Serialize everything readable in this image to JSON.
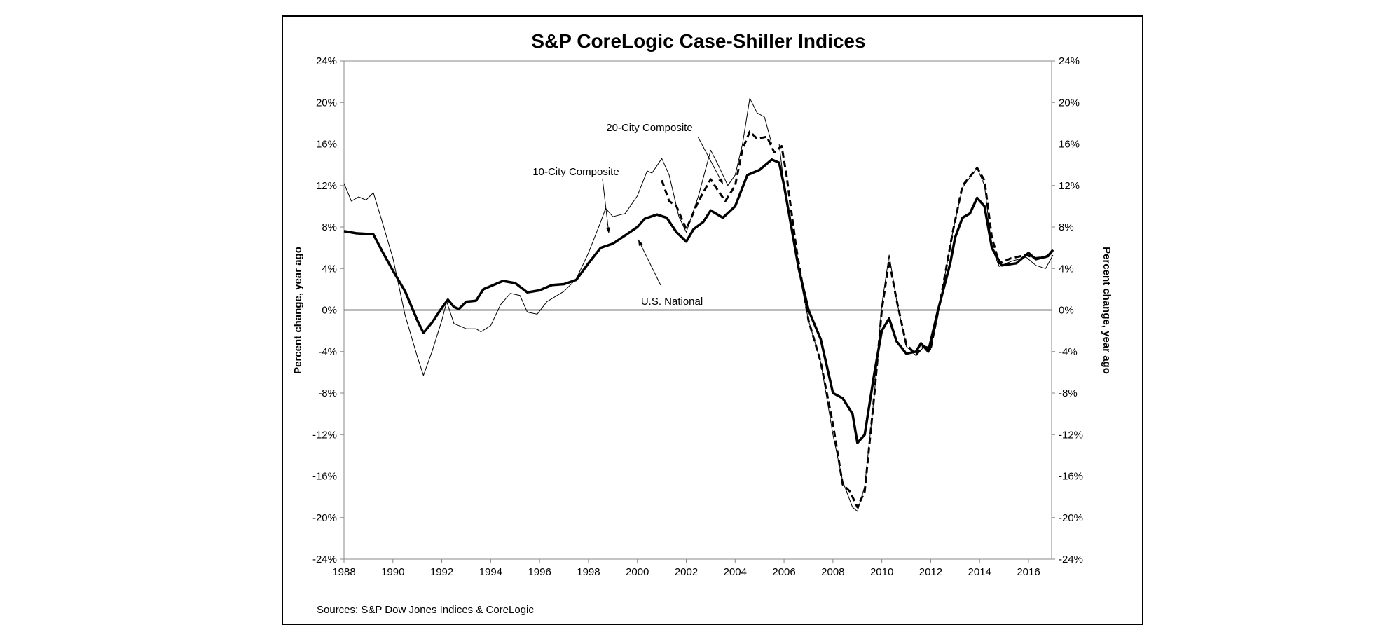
{
  "chart_data": {
    "type": "line",
    "title": "S&P CoreLogic Case-Shiller Indices",
    "ylabel": "Percent change, year ago",
    "ylabel_right": "Percent change, year ago",
    "xlabel": "",
    "source": "Sources: S&P Dow Jones Indices & CoreLogic",
    "xlim": [
      1988,
      2017
    ],
    "ylim": [
      -24,
      24
    ],
    "x_ticks": [
      "1988",
      "1990",
      "1992",
      "1994",
      "1996",
      "1998",
      "2000",
      "2002",
      "2004",
      "2006",
      "2008",
      "2010",
      "2012",
      "2014",
      "2016"
    ],
    "y_ticks": [
      "24%",
      "20%",
      "16%",
      "12%",
      "8%",
      "4%",
      "0%",
      "-4%",
      "-8%",
      "-12%",
      "-16%",
      "-20%",
      "-24%"
    ],
    "grid": false,
    "legend": "none (inline annotations)",
    "annotations": [
      "20-City Composite",
      "10-City Composite",
      "U.S. National"
    ],
    "series": [
      {
        "name": "U.S. National",
        "style": "thick solid",
        "color": "#000000",
        "points": [
          [
            1988,
            7.6
          ],
          [
            1988.5,
            7.4
          ],
          [
            1989.2,
            7.3
          ],
          [
            1989.6,
            5.5
          ],
          [
            1990,
            3.8
          ],
          [
            1990.5,
            1.8
          ],
          [
            1991,
            -1.0
          ],
          [
            1991.25,
            -2.2
          ],
          [
            1991.6,
            -1.2
          ],
          [
            1992,
            0.2
          ],
          [
            1992.25,
            1.0
          ],
          [
            1992.5,
            0.3
          ],
          [
            1992.7,
            0.1
          ],
          [
            1993,
            0.8
          ],
          [
            1993.4,
            0.9
          ],
          [
            1993.7,
            2.0
          ],
          [
            1994,
            2.3
          ],
          [
            1994.5,
            2.8
          ],
          [
            1995,
            2.6
          ],
          [
            1995.5,
            1.7
          ],
          [
            1996,
            1.9
          ],
          [
            1996.5,
            2.4
          ],
          [
            1997,
            2.5
          ],
          [
            1997.5,
            2.9
          ],
          [
            1998,
            4.5
          ],
          [
            1998.5,
            6.0
          ],
          [
            1999,
            6.4
          ],
          [
            1999.5,
            7.2
          ],
          [
            2000,
            8.0
          ],
          [
            2000.3,
            8.8
          ],
          [
            2000.8,
            9.2
          ],
          [
            2001.2,
            8.9
          ],
          [
            2001.6,
            7.5
          ],
          [
            2002,
            6.6
          ],
          [
            2002.3,
            7.8
          ],
          [
            2002.7,
            8.5
          ],
          [
            2003,
            9.6
          ],
          [
            2003.5,
            8.9
          ],
          [
            2004,
            10.0
          ],
          [
            2004.5,
            13.0
          ],
          [
            2005,
            13.5
          ],
          [
            2005.5,
            14.5
          ],
          [
            2005.8,
            14.2
          ],
          [
            2006,
            12.0
          ],
          [
            2006.3,
            8
          ],
          [
            2006.6,
            4
          ],
          [
            2007,
            0
          ],
          [
            2007.5,
            -2.8
          ],
          [
            2008,
            -8.0
          ],
          [
            2008.4,
            -8.5
          ],
          [
            2008.8,
            -10
          ],
          [
            2009,
            -12.8
          ],
          [
            2009.3,
            -12
          ],
          [
            2009.7,
            -6
          ],
          [
            2010,
            -2
          ],
          [
            2010.3,
            -0.8
          ],
          [
            2010.6,
            -3
          ],
          [
            2011,
            -4.2
          ],
          [
            2011.4,
            -4
          ],
          [
            2011.6,
            -3.2
          ],
          [
            2011.9,
            -4
          ],
          [
            2012.3,
            0
          ],
          [
            2012.8,
            4.5
          ],
          [
            2013,
            7
          ],
          [
            2013.3,
            8.9
          ],
          [
            2013.6,
            9.3
          ],
          [
            2013.9,
            10.8
          ],
          [
            2014.2,
            10
          ],
          [
            2014.5,
            6
          ],
          [
            2014.9,
            4.3
          ],
          [
            2015.5,
            4.5
          ],
          [
            2016,
            5.5
          ],
          [
            2016.3,
            4.9
          ],
          [
            2016.8,
            5.2
          ],
          [
            2017,
            5.8
          ]
        ]
      },
      {
        "name": "10-City Composite",
        "style": "thin solid",
        "color": "#000000",
        "points": [
          [
            1988,
            12.2
          ],
          [
            1988.3,
            10.5
          ],
          [
            1988.6,
            10.9
          ],
          [
            1988.9,
            10.6
          ],
          [
            1989.2,
            11.3
          ],
          [
            1989.5,
            9
          ],
          [
            1990,
            5
          ],
          [
            1990.5,
            -0.5
          ],
          [
            1991,
            -4.5
          ],
          [
            1991.25,
            -6.3
          ],
          [
            1991.6,
            -4
          ],
          [
            1992,
            -1
          ],
          [
            1992.2,
            0.8
          ],
          [
            1992.5,
            -1.3
          ],
          [
            1993,
            -1.8
          ],
          [
            1993.4,
            -1.8
          ],
          [
            1993.6,
            -2.1
          ],
          [
            1994,
            -1.5
          ],
          [
            1994.4,
            0.5
          ],
          [
            1994.8,
            1.6
          ],
          [
            1995.2,
            1.4
          ],
          [
            1995.5,
            -0.2
          ],
          [
            1995.9,
            -0.4
          ],
          [
            1996.3,
            0.8
          ],
          [
            1997,
            1.8
          ],
          [
            1997.5,
            3.0
          ],
          [
            1998,
            5.5
          ],
          [
            1998.5,
            8.5
          ],
          [
            1998.7,
            9.8
          ],
          [
            1999,
            9.0
          ],
          [
            1999.5,
            9.3
          ],
          [
            2000,
            11
          ],
          [
            2000.4,
            13.4
          ],
          [
            2000.6,
            13.2
          ],
          [
            2001,
            14.6
          ],
          [
            2001.3,
            13
          ],
          [
            2001.7,
            9
          ],
          [
            2002,
            7.5
          ],
          [
            2002.5,
            11
          ],
          [
            2003,
            15.4
          ],
          [
            2003.3,
            14
          ],
          [
            2003.7,
            12
          ],
          [
            2004,
            13
          ],
          [
            2004.3,
            16
          ],
          [
            2004.6,
            20.4
          ],
          [
            2004.9,
            19
          ],
          [
            2005.2,
            18.6
          ],
          [
            2005.5,
            16
          ],
          [
            2005.8,
            16
          ],
          [
            2006,
            12
          ],
          [
            2006.5,
            5
          ],
          [
            2007,
            -1
          ],
          [
            2007.5,
            -5
          ],
          [
            2008,
            -12
          ],
          [
            2008.4,
            -16.5
          ],
          [
            2008.8,
            -19
          ],
          [
            2009,
            -19.4
          ],
          [
            2009.3,
            -17
          ],
          [
            2009.7,
            -8
          ],
          [
            2010,
            0.5
          ],
          [
            2010.3,
            5.3
          ],
          [
            2010.6,
            1
          ],
          [
            2011,
            -3.5
          ],
          [
            2011.4,
            -4.4
          ],
          [
            2011.7,
            -3.6
          ],
          [
            2012,
            -3.8
          ],
          [
            2012.4,
            1
          ],
          [
            2012.9,
            7.5
          ],
          [
            2013.3,
            11.8
          ],
          [
            2013.9,
            13.7
          ],
          [
            2014.2,
            12
          ],
          [
            2014.5,
            6
          ],
          [
            2014.8,
            4.2
          ],
          [
            2015.3,
            4.7
          ],
          [
            2015.9,
            5.1
          ],
          [
            2016.3,
            4.3
          ],
          [
            2016.7,
            4.0
          ],
          [
            2017,
            5.3
          ]
        ]
      },
      {
        "name": "20-City Composite",
        "style": "thick dashed",
        "color": "#000000",
        "points": [
          [
            2001,
            12.5
          ],
          [
            2001.3,
            10.5
          ],
          [
            2001.6,
            10
          ],
          [
            2002,
            7.8
          ],
          [
            2002.5,
            10.5
          ],
          [
            2003,
            12.6
          ],
          [
            2003.3,
            11.5
          ],
          [
            2003.6,
            10.5
          ],
          [
            2004,
            12
          ],
          [
            2004.3,
            15.5
          ],
          [
            2004.6,
            17.2
          ],
          [
            2004.9,
            16.5
          ],
          [
            2005.3,
            16.7
          ],
          [
            2005.6,
            15.2
          ],
          [
            2005.9,
            15.8
          ],
          [
            2006.1,
            13
          ],
          [
            2006.5,
            6
          ],
          [
            2007,
            -1
          ],
          [
            2007.5,
            -5
          ],
          [
            2008,
            -11
          ],
          [
            2008.4,
            -16.8
          ],
          [
            2008.7,
            -17.5
          ],
          [
            2009,
            -19
          ],
          [
            2009.3,
            -17.5
          ],
          [
            2009.7,
            -8
          ],
          [
            2010,
            0
          ],
          [
            2010.3,
            4.8
          ],
          [
            2010.6,
            1
          ],
          [
            2011,
            -3.3
          ],
          [
            2011.4,
            -4.3
          ],
          [
            2011.7,
            -3.5
          ],
          [
            2012,
            -3.7
          ],
          [
            2012.4,
            1
          ],
          [
            2012.9,
            7.5
          ],
          [
            2013.3,
            12
          ],
          [
            2013.9,
            13.7
          ],
          [
            2014.2,
            12.5
          ],
          [
            2014.5,
            7
          ],
          [
            2014.8,
            4.5
          ],
          [
            2015.3,
            5
          ],
          [
            2015.9,
            5.3
          ],
          [
            2016.3,
            5
          ],
          [
            2016.7,
            5.1
          ],
          [
            2017,
            5.7
          ]
        ]
      }
    ]
  }
}
